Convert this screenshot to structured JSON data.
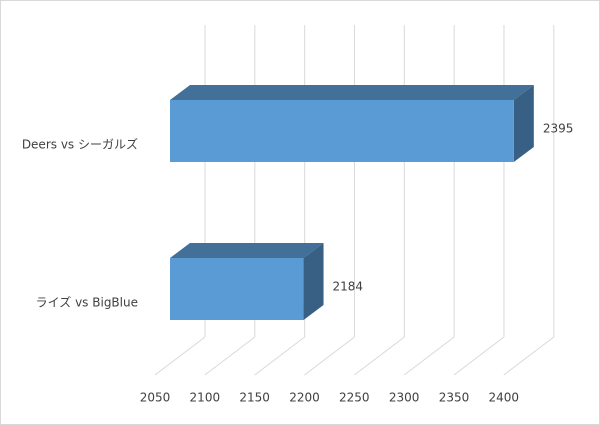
{
  "chart_data": {
    "type": "bar3d",
    "orientation": "horizontal",
    "categories": [
      "Deers vs シーガルズ",
      "ライズ vs BigBlue"
    ],
    "values": [
      2395,
      2184
    ],
    "color": "#5b9bd5",
    "xlim": [
      2050,
      2400
    ],
    "xticks": [
      2050,
      2100,
      2150,
      2200,
      2250,
      2300,
      2350,
      2400
    ],
    "grid": true
  }
}
